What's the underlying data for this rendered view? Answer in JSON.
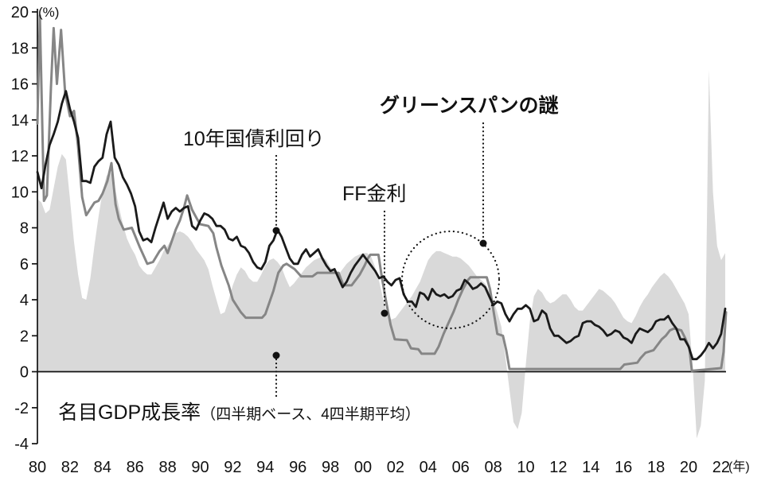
{
  "chart_data": {
    "type": "line",
    "title": "",
    "y_unit_label": "(%)",
    "x_unit_label": "(年)",
    "xlim": [
      1980,
      2022.3
    ],
    "ylim": [
      -4,
      20
    ],
    "x_ticks": [
      1980,
      1982,
      1984,
      1986,
      1988,
      1990,
      1992,
      1994,
      1996,
      1998,
      2000,
      2002,
      2004,
      2006,
      2008,
      2010,
      2012,
      2014,
      2016,
      2018,
      2020,
      2022
    ],
    "x_tick_labels": [
      "80",
      "82",
      "84",
      "86",
      "88",
      "90",
      "92",
      "94",
      "96",
      "98",
      "00",
      "02",
      "04",
      "06",
      "08",
      "10",
      "12",
      "14",
      "16",
      "18",
      "20",
      "22"
    ],
    "y_ticks": [
      -4,
      -2,
      0,
      2,
      4,
      6,
      8,
      10,
      12,
      14,
      16,
      18,
      20
    ],
    "grid": false,
    "legend": "none",
    "annotations": {
      "bond_label": "10年国債利回り",
      "ff_label": "FF金利",
      "greenspan_label": "グリーンスパンの謎",
      "gdp_label": "名目GDP成長率",
      "gdp_label_sub": "（四半期ベース、4四半期平均）"
    },
    "colors": {
      "bond_line": "#1a1a1a",
      "ff_line": "#868686",
      "gdp_area": "#d9d9d9",
      "axis": "#111111"
    },
    "series": [
      {
        "id": "gdp-area",
        "name": "名目GDP成長率（四半期ベース、4四半期平均）",
        "kind": "area",
        "color": "#d9d9d9",
        "x_start": 1980,
        "x_step": 0.25,
        "values": [
          9.6,
          9.4,
          8.8,
          9.0,
          10.2,
          11.4,
          12.1,
          11.8,
          9.6,
          7.2,
          5.4,
          4.1,
          4.0,
          5.2,
          7.0,
          8.6,
          10.0,
          10.9,
          11.1,
          10.3,
          9.2,
          8.2,
          7.4,
          6.9,
          6.5,
          5.9,
          5.6,
          5.4,
          5.4,
          5.8,
          6.2,
          6.7,
          7.0,
          7.4,
          7.7,
          7.8,
          7.7,
          7.5,
          7.2,
          6.8,
          6.5,
          6.2,
          5.7,
          4.8,
          4.0,
          3.2,
          3.3,
          4.0,
          4.8,
          5.4,
          5.8,
          5.6,
          5.2,
          5.0,
          5.0,
          5.4,
          5.9,
          6.2,
          6.3,
          6.1,
          5.8,
          5.2,
          4.7,
          4.9,
          5.2,
          5.5,
          5.8,
          6.0,
          6.2,
          6.3,
          6.4,
          6.2,
          5.8,
          5.6,
          5.4,
          5.7,
          6.0,
          6.2,
          6.4,
          6.5,
          6.6,
          6.6,
          6.4,
          5.8,
          5.0,
          4.0,
          3.2,
          2.9,
          3.0,
          3.3,
          3.6,
          3.9,
          4.2,
          4.6,
          5.0,
          5.6,
          6.2,
          6.5,
          6.7,
          6.7,
          6.6,
          6.5,
          6.4,
          6.4,
          6.3,
          6.1,
          5.9,
          5.6,
          5.3,
          5.1,
          4.9,
          4.5,
          4.0,
          3.3,
          2.5,
          0.8,
          -1.0,
          -2.8,
          -3.2,
          -2.3,
          0.4,
          2.8,
          4.2,
          4.6,
          4.4,
          4.0,
          3.8,
          3.9,
          4.1,
          4.3,
          4.3,
          4.0,
          3.6,
          3.4,
          3.4,
          3.7,
          4.0,
          4.3,
          4.6,
          4.5,
          4.3,
          4.1,
          3.8,
          3.4,
          3.0,
          2.8,
          2.7,
          3.1,
          3.6,
          4.0,
          4.3,
          4.7,
          5.0,
          5.3,
          5.5,
          5.3,
          5.0,
          4.6,
          4.2,
          3.8,
          3.2,
          0.3,
          -3.7,
          -3.0,
          -0.5,
          16.8,
          10.0,
          7.0,
          6.2,
          6.6
        ]
      },
      {
        "id": "ff-rate-line",
        "name": "FF金利",
        "kind": "line",
        "color": "#868686",
        "width": 3,
        "points": [
          [
            1980.0,
            13.8
          ],
          [
            1980.15,
            19.8
          ],
          [
            1980.4,
            9.5
          ],
          [
            1980.58,
            9.8
          ],
          [
            1980.83,
            15.8
          ],
          [
            1981.0,
            19.1
          ],
          [
            1981.2,
            16.0
          ],
          [
            1981.45,
            19.0
          ],
          [
            1981.7,
            15.5
          ],
          [
            1982.0,
            14.2
          ],
          [
            1982.25,
            14.5
          ],
          [
            1982.5,
            12.5
          ],
          [
            1982.75,
            9.7
          ],
          [
            1983.0,
            8.7
          ],
          [
            1983.5,
            9.4
          ],
          [
            1983.75,
            9.5
          ],
          [
            1984.0,
            9.9
          ],
          [
            1984.3,
            10.6
          ],
          [
            1984.55,
            11.6
          ],
          [
            1984.8,
            9.3
          ],
          [
            1985.0,
            8.5
          ],
          [
            1985.3,
            7.9
          ],
          [
            1985.8,
            8.0
          ],
          [
            1986.3,
            6.9
          ],
          [
            1986.75,
            6.0
          ],
          [
            1987.1,
            6.1
          ],
          [
            1987.5,
            6.7
          ],
          [
            1987.8,
            7.0
          ],
          [
            1988.0,
            6.6
          ],
          [
            1988.5,
            7.9
          ],
          [
            1988.75,
            8.4
          ],
          [
            1989.0,
            9.1
          ],
          [
            1989.2,
            9.8
          ],
          [
            1989.5,
            9.0
          ],
          [
            1989.8,
            8.5
          ],
          [
            1990.0,
            8.2
          ],
          [
            1990.5,
            8.1
          ],
          [
            1990.8,
            7.7
          ],
          [
            1991.0,
            6.9
          ],
          [
            1991.3,
            5.9
          ],
          [
            1991.75,
            4.8
          ],
          [
            1992.0,
            4.0
          ],
          [
            1992.5,
            3.3
          ],
          [
            1992.8,
            3.0
          ],
          [
            1993.8,
            3.0
          ],
          [
            1994.0,
            3.2
          ],
          [
            1994.5,
            4.5
          ],
          [
            1994.8,
            5.5
          ],
          [
            1995.1,
            5.9
          ],
          [
            1995.3,
            6.0
          ],
          [
            1995.8,
            5.7
          ],
          [
            1996.2,
            5.3
          ],
          [
            1996.9,
            5.3
          ],
          [
            1997.2,
            5.5
          ],
          [
            1998.5,
            5.5
          ],
          [
            1998.8,
            4.8
          ],
          [
            1999.3,
            4.8
          ],
          [
            1999.8,
            5.4
          ],
          [
            2000.1,
            5.9
          ],
          [
            2000.3,
            6.3
          ],
          [
            2000.45,
            6.5
          ],
          [
            2000.95,
            6.5
          ],
          [
            2001.15,
            5.3
          ],
          [
            2001.4,
            4.0
          ],
          [
            2001.7,
            2.6
          ],
          [
            2001.95,
            1.8
          ],
          [
            2002.7,
            1.75
          ],
          [
            2002.95,
            1.3
          ],
          [
            2003.4,
            1.25
          ],
          [
            2003.6,
            1.0
          ],
          [
            2004.4,
            1.0
          ],
          [
            2004.65,
            1.4
          ],
          [
            2004.95,
            2.1
          ],
          [
            2005.25,
            2.7
          ],
          [
            2005.55,
            3.3
          ],
          [
            2005.85,
            4.0
          ],
          [
            2006.15,
            4.6
          ],
          [
            2006.45,
            5.1
          ],
          [
            2006.6,
            5.25
          ],
          [
            2007.6,
            5.25
          ],
          [
            2007.8,
            4.6
          ],
          [
            2008.05,
            3.2
          ],
          [
            2008.25,
            2.1
          ],
          [
            2008.6,
            2.0
          ],
          [
            2008.8,
            1.2
          ],
          [
            2009.0,
            0.15
          ],
          [
            2015.8,
            0.15
          ],
          [
            2016.05,
            0.4
          ],
          [
            2016.85,
            0.5
          ],
          [
            2017.05,
            0.75
          ],
          [
            2017.35,
            1.05
          ],
          [
            2017.85,
            1.2
          ],
          [
            2018.1,
            1.5
          ],
          [
            2018.35,
            1.8
          ],
          [
            2018.6,
            2.0
          ],
          [
            2018.85,
            2.3
          ],
          [
            2019.1,
            2.4
          ],
          [
            2019.55,
            2.3
          ],
          [
            2019.8,
            1.85
          ],
          [
            2020.05,
            1.3
          ],
          [
            2020.2,
            0.05
          ],
          [
            2022.0,
            0.2
          ],
          [
            2022.15,
            1.1
          ],
          [
            2022.3,
            3.3
          ]
        ]
      },
      {
        "id": "bond-yield-line",
        "name": "10年国債利回り",
        "kind": "line",
        "color": "#1a1a1a",
        "width": 2.8,
        "x_start": 1980,
        "x_step": 0.25,
        "values": [
          11.1,
          10.2,
          11.5,
          12.6,
          13.2,
          13.9,
          14.9,
          15.6,
          14.6,
          13.9,
          13.0,
          10.6,
          10.6,
          10.5,
          11.4,
          11.7,
          11.9,
          13.2,
          13.9,
          11.9,
          11.5,
          10.8,
          10.4,
          9.9,
          9.2,
          7.8,
          7.3,
          7.4,
          7.2,
          8.0,
          8.7,
          9.4,
          8.5,
          8.9,
          9.1,
          8.9,
          9.1,
          9.2,
          8.1,
          7.9,
          8.4,
          8.8,
          8.7,
          8.5,
          8.1,
          8.1,
          7.9,
          7.4,
          7.3,
          7.5,
          7.0,
          6.9,
          6.6,
          6.1,
          5.8,
          5.7,
          6.1,
          7.0,
          7.3,
          7.9,
          7.5,
          6.9,
          6.3,
          6.0,
          6.0,
          6.5,
          6.8,
          6.4,
          6.6,
          6.8,
          6.3,
          5.9,
          5.6,
          5.7,
          5.2,
          4.7,
          5.0,
          5.5,
          5.9,
          6.2,
          6.5,
          6.2,
          5.9,
          5.6,
          5.2,
          5.3,
          5.0,
          4.8,
          5.1,
          5.2,
          4.3,
          3.9,
          3.9,
          3.6,
          4.4,
          4.3,
          4.0,
          4.6,
          4.3,
          4.2,
          4.3,
          4.1,
          4.2,
          4.5,
          4.6,
          5.1,
          4.9,
          4.6,
          4.7,
          4.9,
          4.7,
          4.2,
          3.7,
          3.9,
          3.8,
          3.2,
          2.8,
          3.2,
          3.5,
          3.5,
          3.7,
          3.5,
          2.8,
          2.9,
          3.4,
          3.2,
          2.4,
          2.0,
          2.0,
          1.8,
          1.6,
          1.7,
          1.9,
          2.0,
          2.7,
          2.8,
          2.8,
          2.6,
          2.5,
          2.3,
          2.0,
          2.1,
          2.3,
          2.2,
          1.9,
          1.8,
          1.6,
          2.1,
          2.4,
          2.3,
          2.2,
          2.4,
          2.8,
          2.9,
          2.9,
          3.1,
          2.7,
          2.4,
          1.8,
          1.8,
          1.4,
          0.7,
          0.7,
          0.9,
          1.2,
          1.6,
          1.3,
          1.6,
          2.1,
          3.5
        ]
      }
    ]
  }
}
